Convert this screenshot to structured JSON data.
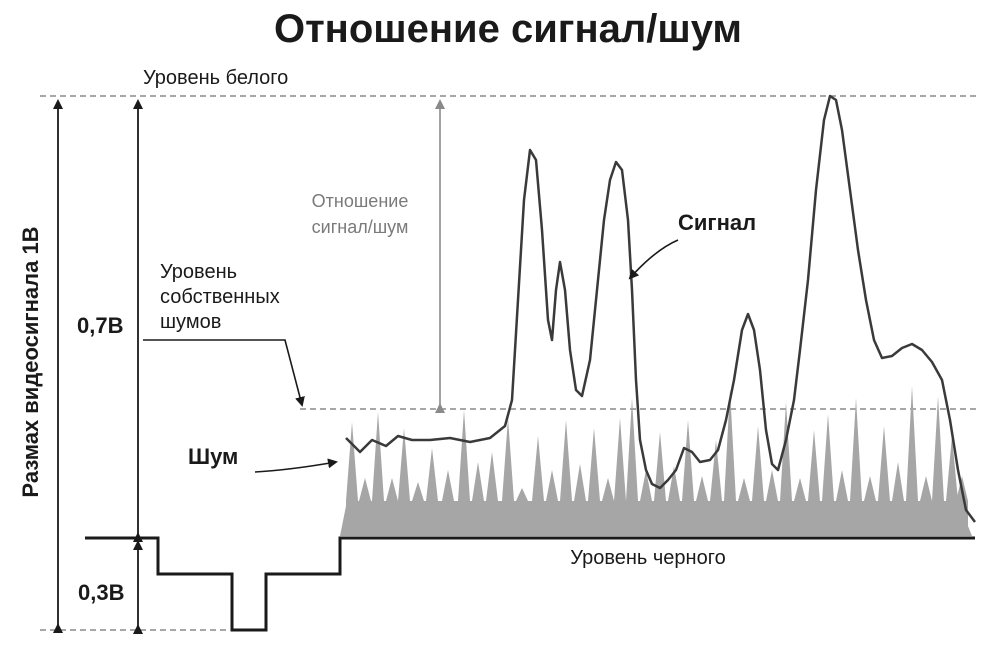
{
  "title": "Отношение сигнал/шум",
  "labels": {
    "white_level": "Уровень белого",
    "black_level": "Уровень черного",
    "snr_line1": "Отношение",
    "snr_line2": "сигнал/шум",
    "signal": "Сигнал",
    "noise": "Шум",
    "noise_level_line1": "Уровень",
    "noise_level_line2": "собственных",
    "noise_level_line3": "шумов",
    "swing": "Размах видеосигнала 1В",
    "v07": "0,7В",
    "v03": "0,3В"
  },
  "colors": {
    "ink": "#1a1a1a",
    "signal_line": "#3a3a3a",
    "noise_fill": "#a6a6a6",
    "guide_gray": "#8a8a8a"
  }
}
